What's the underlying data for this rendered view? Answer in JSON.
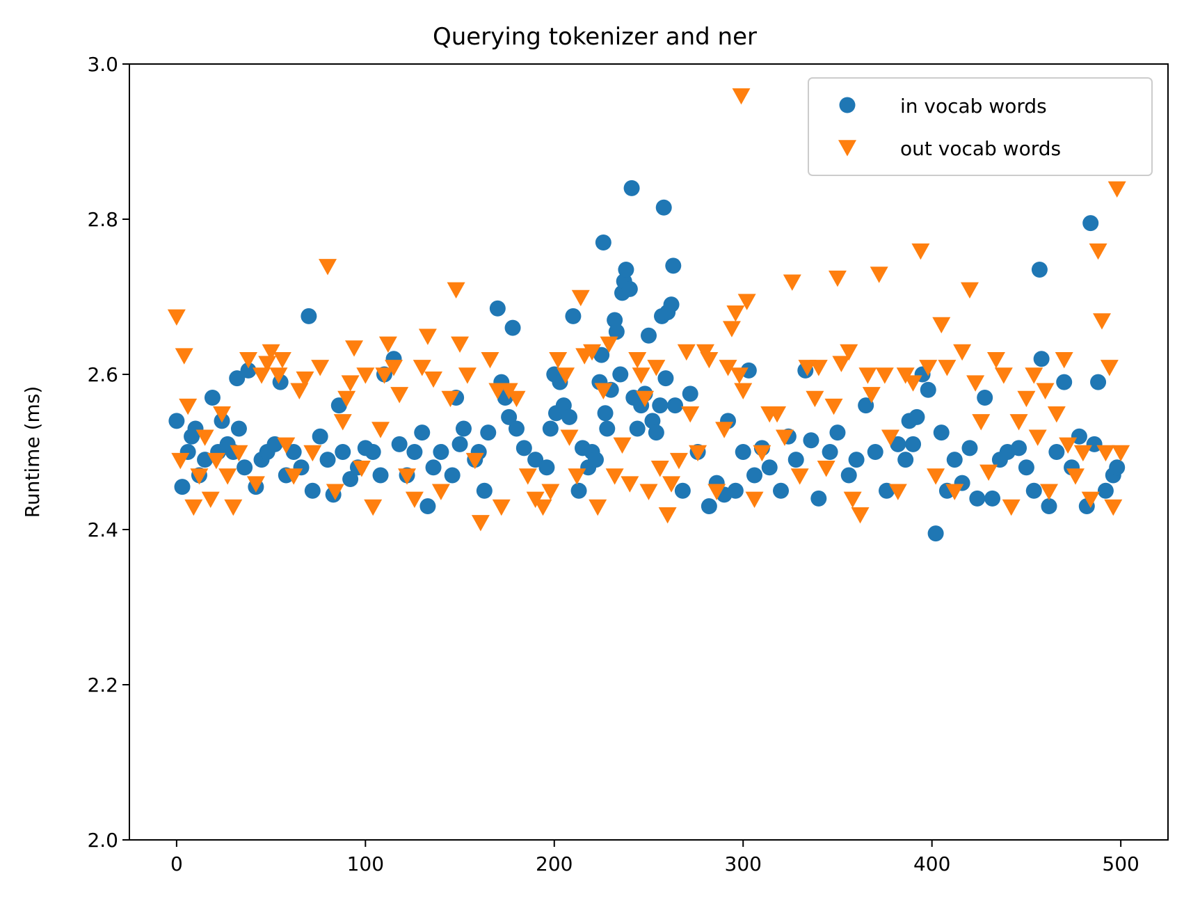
{
  "chart_data": {
    "type": "scatter",
    "title": "Querying tokenizer and ner",
    "xlabel": "",
    "ylabel": "Runtime (ms)",
    "xlim": [
      -25,
      525
    ],
    "ylim": [
      2.0,
      3.0
    ],
    "xticks": [
      0,
      100,
      200,
      300,
      400,
      500
    ],
    "yticks": [
      2.0,
      2.2,
      2.4,
      2.6,
      2.8,
      3.0
    ],
    "grid": false,
    "legend_position": "top-right",
    "series": [
      {
        "name": "in vocab words",
        "marker": "circle",
        "color": "#1f77b4",
        "points": [
          [
            0,
            2.54
          ],
          [
            3,
            2.455
          ],
          [
            6,
            2.5
          ],
          [
            8,
            2.52
          ],
          [
            10,
            2.53
          ],
          [
            12,
            2.47
          ],
          [
            15,
            2.49
          ],
          [
            19,
            2.57
          ],
          [
            22,
            2.5
          ],
          [
            24,
            2.54
          ],
          [
            27,
            2.51
          ],
          [
            30,
            2.5
          ],
          [
            32,
            2.595
          ],
          [
            33,
            2.53
          ],
          [
            36,
            2.48
          ],
          [
            38,
            2.605
          ],
          [
            42,
            2.455
          ],
          [
            45,
            2.49
          ],
          [
            48,
            2.5
          ],
          [
            52,
            2.51
          ],
          [
            55,
            2.59
          ],
          [
            58,
            2.47
          ],
          [
            62,
            2.5
          ],
          [
            66,
            2.48
          ],
          [
            70,
            2.675
          ],
          [
            72,
            2.45
          ],
          [
            76,
            2.52
          ],
          [
            80,
            2.49
          ],
          [
            83,
            2.445
          ],
          [
            86,
            2.56
          ],
          [
            88,
            2.5
          ],
          [
            92,
            2.465
          ],
          [
            96,
            2.48
          ],
          [
            100,
            2.505
          ],
          [
            104,
            2.5
          ],
          [
            108,
            2.47
          ],
          [
            110,
            2.6
          ],
          [
            115,
            2.62
          ],
          [
            118,
            2.51
          ],
          [
            122,
            2.47
          ],
          [
            126,
            2.5
          ],
          [
            130,
            2.525
          ],
          [
            133,
            2.43
          ],
          [
            136,
            2.48
          ],
          [
            140,
            2.5
          ],
          [
            146,
            2.47
          ],
          [
            148,
            2.57
          ],
          [
            150,
            2.51
          ],
          [
            152,
            2.53
          ],
          [
            158,
            2.49
          ],
          [
            160,
            2.5
          ],
          [
            163,
            2.45
          ],
          [
            165,
            2.525
          ],
          [
            170,
            2.685
          ],
          [
            172,
            2.59
          ],
          [
            174,
            2.57
          ],
          [
            176,
            2.545
          ],
          [
            178,
            2.66
          ],
          [
            180,
            2.53
          ],
          [
            184,
            2.505
          ],
          [
            190,
            2.49
          ],
          [
            196,
            2.48
          ],
          [
            198,
            2.53
          ],
          [
            200,
            2.6
          ],
          [
            201,
            2.55
          ],
          [
            203,
            2.59
          ],
          [
            205,
            2.56
          ],
          [
            208,
            2.545
          ],
          [
            210,
            2.675
          ],
          [
            213,
            2.45
          ],
          [
            215,
            2.505
          ],
          [
            218,
            2.48
          ],
          [
            220,
            2.5
          ],
          [
            222,
            2.49
          ],
          [
            224,
            2.59
          ],
          [
            225,
            2.625
          ],
          [
            226,
            2.77
          ],
          [
            227,
            2.55
          ],
          [
            228,
            2.53
          ],
          [
            230,
            2.58
          ],
          [
            232,
            2.67
          ],
          [
            233,
            2.655
          ],
          [
            235,
            2.6
          ],
          [
            236,
            2.705
          ],
          [
            237,
            2.72
          ],
          [
            238,
            2.735
          ],
          [
            240,
            2.71
          ],
          [
            241,
            2.84
          ],
          [
            242,
            2.57
          ],
          [
            244,
            2.53
          ],
          [
            246,
            2.56
          ],
          [
            248,
            2.575
          ],
          [
            250,
            2.65
          ],
          [
            252,
            2.54
          ],
          [
            254,
            2.525
          ],
          [
            256,
            2.56
          ],
          [
            257,
            2.675
          ],
          [
            258,
            2.815
          ],
          [
            259,
            2.595
          ],
          [
            260,
            2.68
          ],
          [
            262,
            2.69
          ],
          [
            263,
            2.74
          ],
          [
            264,
            2.56
          ],
          [
            268,
            2.45
          ],
          [
            272,
            2.575
          ],
          [
            276,
            2.5
          ],
          [
            282,
            2.43
          ],
          [
            286,
            2.46
          ],
          [
            290,
            2.445
          ],
          [
            292,
            2.54
          ],
          [
            296,
            2.45
          ],
          [
            300,
            2.5
          ],
          [
            303,
            2.605
          ],
          [
            306,
            2.47
          ],
          [
            310,
            2.505
          ],
          [
            314,
            2.48
          ],
          [
            320,
            2.45
          ],
          [
            324,
            2.52
          ],
          [
            328,
            2.49
          ],
          [
            333,
            2.605
          ],
          [
            336,
            2.515
          ],
          [
            340,
            2.44
          ],
          [
            346,
            2.5
          ],
          [
            350,
            2.525
          ],
          [
            356,
            2.47
          ],
          [
            360,
            2.49
          ],
          [
            365,
            2.56
          ],
          [
            370,
            2.5
          ],
          [
            376,
            2.45
          ],
          [
            382,
            2.51
          ],
          [
            386,
            2.49
          ],
          [
            388,
            2.54
          ],
          [
            390,
            2.51
          ],
          [
            392,
            2.545
          ],
          [
            395,
            2.6
          ],
          [
            398,
            2.58
          ],
          [
            402,
            2.395
          ],
          [
            405,
            2.525
          ],
          [
            408,
            2.45
          ],
          [
            412,
            2.49
          ],
          [
            416,
            2.46
          ],
          [
            420,
            2.505
          ],
          [
            424,
            2.44
          ],
          [
            428,
            2.57
          ],
          [
            432,
            2.44
          ],
          [
            436,
            2.49
          ],
          [
            440,
            2.5
          ],
          [
            446,
            2.505
          ],
          [
            450,
            2.48
          ],
          [
            454,
            2.45
          ],
          [
            457,
            2.735
          ],
          [
            458,
            2.62
          ],
          [
            462,
            2.43
          ],
          [
            466,
            2.5
          ],
          [
            470,
            2.59
          ],
          [
            474,
            2.48
          ],
          [
            478,
            2.52
          ],
          [
            482,
            2.43
          ],
          [
            484,
            2.795
          ],
          [
            486,
            2.51
          ],
          [
            488,
            2.59
          ],
          [
            492,
            2.45
          ],
          [
            496,
            2.47
          ],
          [
            498,
            2.48
          ]
        ]
      },
      {
        "name": "out vocab words",
        "marker": "triangle-down",
        "color": "#ff7f0e",
        "points": [
          [
            0,
            2.675
          ],
          [
            2,
            2.49
          ],
          [
            4,
            2.625
          ],
          [
            6,
            2.56
          ],
          [
            9,
            2.43
          ],
          [
            12,
            2.47
          ],
          [
            15,
            2.52
          ],
          [
            18,
            2.44
          ],
          [
            21,
            2.49
          ],
          [
            24,
            2.55
          ],
          [
            27,
            2.47
          ],
          [
            30,
            2.43
          ],
          [
            33,
            2.5
          ],
          [
            38,
            2.62
          ],
          [
            42,
            2.46
          ],
          [
            45,
            2.6
          ],
          [
            48,
            2.615
          ],
          [
            50,
            2.63
          ],
          [
            54,
            2.6
          ],
          [
            56,
            2.62
          ],
          [
            58,
            2.51
          ],
          [
            62,
            2.47
          ],
          [
            65,
            2.58
          ],
          [
            68,
            2.595
          ],
          [
            72,
            2.5
          ],
          [
            76,
            2.61
          ],
          [
            80,
            2.74
          ],
          [
            84,
            2.45
          ],
          [
            88,
            2.54
          ],
          [
            90,
            2.57
          ],
          [
            92,
            2.59
          ],
          [
            94,
            2.635
          ],
          [
            98,
            2.48
          ],
          [
            100,
            2.6
          ],
          [
            104,
            2.43
          ],
          [
            108,
            2.53
          ],
          [
            110,
            2.6
          ],
          [
            112,
            2.64
          ],
          [
            115,
            2.61
          ],
          [
            118,
            2.575
          ],
          [
            122,
            2.47
          ],
          [
            126,
            2.44
          ],
          [
            130,
            2.61
          ],
          [
            133,
            2.65
          ],
          [
            136,
            2.595
          ],
          [
            140,
            2.45
          ],
          [
            145,
            2.57
          ],
          [
            148,
            2.71
          ],
          [
            150,
            2.64
          ],
          [
            154,
            2.6
          ],
          [
            158,
            2.49
          ],
          [
            161,
            2.41
          ],
          [
            166,
            2.62
          ],
          [
            170,
            2.58
          ],
          [
            172,
            2.43
          ],
          [
            176,
            2.58
          ],
          [
            180,
            2.57
          ],
          [
            186,
            2.47
          ],
          [
            190,
            2.44
          ],
          [
            194,
            2.43
          ],
          [
            198,
            2.45
          ],
          [
            202,
            2.62
          ],
          [
            206,
            2.6
          ],
          [
            208,
            2.52
          ],
          [
            212,
            2.47
          ],
          [
            214,
            2.7
          ],
          [
            216,
            2.625
          ],
          [
            220,
            2.63
          ],
          [
            223,
            2.43
          ],
          [
            226,
            2.58
          ],
          [
            229,
            2.64
          ],
          [
            232,
            2.47
          ],
          [
            236,
            2.51
          ],
          [
            240,
            2.46
          ],
          [
            244,
            2.62
          ],
          [
            246,
            2.6
          ],
          [
            248,
            2.57
          ],
          [
            250,
            2.45
          ],
          [
            254,
            2.61
          ],
          [
            256,
            2.48
          ],
          [
            260,
            2.42
          ],
          [
            262,
            2.46
          ],
          [
            266,
            2.49
          ],
          [
            270,
            2.63
          ],
          [
            272,
            2.55
          ],
          [
            276,
            2.5
          ],
          [
            280,
            2.63
          ],
          [
            282,
            2.62
          ],
          [
            286,
            2.45
          ],
          [
            290,
            2.53
          ],
          [
            292,
            2.61
          ],
          [
            294,
            2.66
          ],
          [
            296,
            2.68
          ],
          [
            298,
            2.6
          ],
          [
            299,
            2.96
          ],
          [
            300,
            2.58
          ],
          [
            302,
            2.695
          ],
          [
            306,
            2.44
          ],
          [
            310,
            2.5
          ],
          [
            314,
            2.55
          ],
          [
            318,
            2.55
          ],
          [
            322,
            2.52
          ],
          [
            326,
            2.72
          ],
          [
            330,
            2.47
          ],
          [
            334,
            2.61
          ],
          [
            338,
            2.57
          ],
          [
            340,
            2.61
          ],
          [
            344,
            2.48
          ],
          [
            348,
            2.56
          ],
          [
            350,
            2.725
          ],
          [
            352,
            2.615
          ],
          [
            356,
            2.63
          ],
          [
            358,
            2.44
          ],
          [
            362,
            2.42
          ],
          [
            366,
            2.6
          ],
          [
            368,
            2.575
          ],
          [
            372,
            2.73
          ],
          [
            375,
            2.6
          ],
          [
            378,
            2.52
          ],
          [
            382,
            2.45
          ],
          [
            386,
            2.6
          ],
          [
            390,
            2.59
          ],
          [
            394,
            2.76
          ],
          [
            398,
            2.61
          ],
          [
            402,
            2.47
          ],
          [
            405,
            2.665
          ],
          [
            408,
            2.61
          ],
          [
            412,
            2.45
          ],
          [
            416,
            2.63
          ],
          [
            420,
            2.71
          ],
          [
            423,
            2.59
          ],
          [
            426,
            2.54
          ],
          [
            430,
            2.475
          ],
          [
            434,
            2.62
          ],
          [
            438,
            2.6
          ],
          [
            442,
            2.43
          ],
          [
            446,
            2.54
          ],
          [
            450,
            2.57
          ],
          [
            454,
            2.6
          ],
          [
            456,
            2.52
          ],
          [
            460,
            2.58
          ],
          [
            462,
            2.45
          ],
          [
            466,
            2.55
          ],
          [
            470,
            2.62
          ],
          [
            472,
            2.51
          ],
          [
            476,
            2.47
          ],
          [
            480,
            2.5
          ],
          [
            484,
            2.44
          ],
          [
            488,
            2.76
          ],
          [
            490,
            2.67
          ],
          [
            492,
            2.5
          ],
          [
            494,
            2.61
          ],
          [
            496,
            2.43
          ],
          [
            498,
            2.84
          ],
          [
            500,
            2.5
          ]
        ]
      }
    ]
  }
}
